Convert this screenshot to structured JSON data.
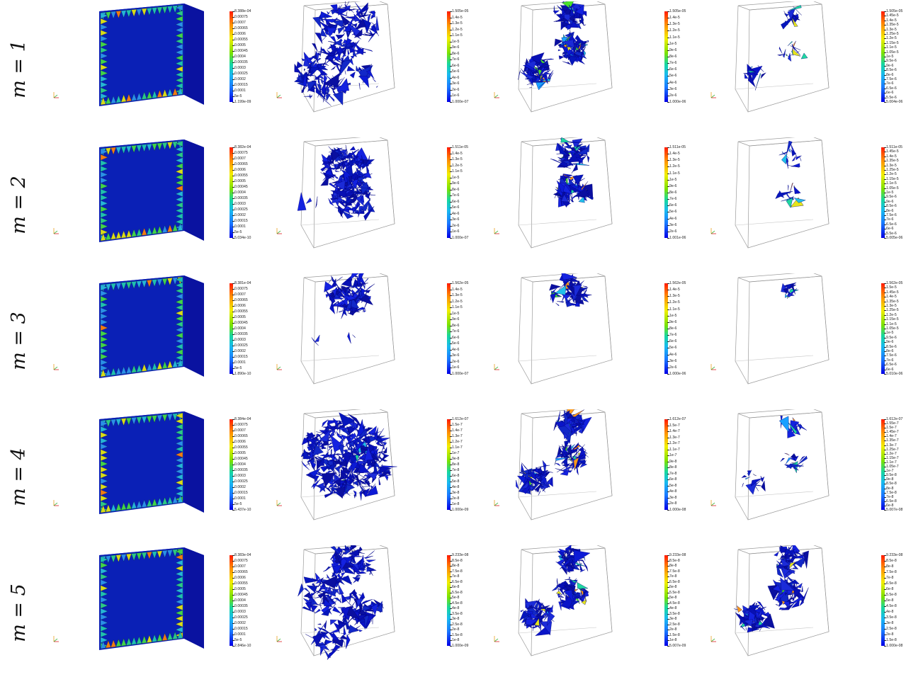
{
  "rows": [
    {
      "label": "m = 1",
      "panels": [
        {
          "kind": "full",
          "ticks": [
            "8.388e-04",
            "0.00075",
            "0.0007",
            "0.00065",
            "0.0006",
            "0.00055",
            "0.0005",
            "0.00045",
            "0.0004",
            "0.00035",
            "0.0003",
            "0.00025",
            "0.0002",
            "0.00015",
            "0.0001",
            "5e-5",
            "1.199e-09"
          ]
        },
        {
          "kind": "scatter",
          "ticks": [
            "1.505e-05",
            "1.4e-5",
            "1.3e-5",
            "1.2e-5",
            "1.1e-5",
            "1e-5",
            "9e-6",
            "8e-6",
            "7e-6",
            "6e-6",
            "5e-6",
            "4e-6",
            "3e-6",
            "2e-6",
            "1e-6",
            "1.000e-07"
          ]
        },
        {
          "kind": "three",
          "ticks": [
            "1.505e-05",
            "1.4e-5",
            "1.3e-5",
            "1.2e-5",
            "1.1e-5",
            "1e-5",
            "9e-6",
            "8e-6",
            "7e-6",
            "6e-6",
            "5e-6",
            "4e-6",
            "3e-6",
            "2e-6",
            "1.000e-06"
          ]
        },
        {
          "kind": "three-sparse",
          "ticks": [
            "1.505e-05",
            "1.45e-5",
            "1.4e-5",
            "1.35e-5",
            "1.3e-5",
            "1.25e-5",
            "1.2e-5",
            "1.15e-5",
            "1.1e-5",
            "1.05e-5",
            "1e-5",
            "9.5e-6",
            "9e-6",
            "8.5e-6",
            "8e-6",
            "7.5e-6",
            "7e-6",
            "6.5e-6",
            "6e-6",
            "5.5e-6",
            "5.004e-06"
          ]
        }
      ]
    },
    {
      "label": "m = 2",
      "panels": [
        {
          "kind": "full",
          "ticks": [
            "8.382e-04",
            "0.00075",
            "0.0007",
            "0.00065",
            "0.0006",
            "0.00055",
            "0.0005",
            "0.00045",
            "0.0004",
            "0.00035",
            "0.0003",
            "0.00025",
            "0.0002",
            "0.00015",
            "0.0001",
            "5e-5",
            "5.034e-10"
          ]
        },
        {
          "kind": "big",
          "ticks": [
            "1.511e-05",
            "1.4e-5",
            "1.3e-5",
            "1.2e-5",
            "1.1e-5",
            "1e-5",
            "9e-6",
            "8e-6",
            "7e-6",
            "6e-6",
            "5e-6",
            "4e-6",
            "3e-6",
            "2e-6",
            "1e-6",
            "1.000e-07"
          ]
        },
        {
          "kind": "two",
          "ticks": [
            "1.511e-05",
            "1.4e-5",
            "1.3e-5",
            "1.2e-5",
            "1.1e-5",
            "1e-5",
            "9e-6",
            "8e-6",
            "7e-6",
            "6e-6",
            "5e-6",
            "4e-6",
            "3e-6",
            "2e-6",
            "1.001e-06"
          ]
        },
        {
          "kind": "two-sparse",
          "ticks": [
            "1.511e-05",
            "1.45e-5",
            "1.4e-5",
            "1.35e-5",
            "1.3e-5",
            "1.25e-5",
            "1.2e-5",
            "1.15e-5",
            "1.1e-5",
            "1.05e-5",
            "1e-5",
            "9.5e-6",
            "9e-6",
            "8.5e-6",
            "8e-6",
            "7.5e-6",
            "7e-6",
            "6.5e-6",
            "6e-6",
            "5.5e-6",
            "5.005e-06"
          ]
        }
      ]
    },
    {
      "label": "m = 3",
      "panels": [
        {
          "kind": "full",
          "ticks": [
            "8.381e-04",
            "0.00075",
            "0.0007",
            "0.00065",
            "0.0006",
            "0.00055",
            "0.0005",
            "0.00045",
            "0.0004",
            "0.00035",
            "0.0003",
            "0.00025",
            "0.0002",
            "0.00015",
            "0.0001",
            "5e-5",
            "1.890e-10"
          ]
        },
        {
          "kind": "top",
          "ticks": [
            "1.562e-05",
            "1.4e-5",
            "1.3e-5",
            "1.2e-5",
            "1.1e-5",
            "1e-5",
            "9e-6",
            "8e-6",
            "7e-6",
            "6e-6",
            "5e-6",
            "4e-6",
            "3e-6",
            "2e-6",
            "1e-6",
            "1.000e-07"
          ]
        },
        {
          "kind": "one",
          "ticks": [
            "1.562e-05",
            "1.4e-5",
            "1.3e-5",
            "1.2e-5",
            "1.1e-5",
            "1e-5",
            "9e-6",
            "8e-6",
            "7e-6",
            "6e-6",
            "5e-6",
            "4e-6",
            "3e-6",
            "2e-6",
            "1.000e-06"
          ]
        },
        {
          "kind": "one-sparse",
          "ticks": [
            "1.562e-05",
            "1.5e-5",
            "1.45e-5",
            "1.4e-5",
            "1.35e-5",
            "1.3e-5",
            "1.25e-5",
            "1.2e-5",
            "1.15e-5",
            "1.1e-5",
            "1.05e-5",
            "1e-5",
            "9.5e-6",
            "9e-6",
            "8.5e-6",
            "8e-6",
            "7.5e-6",
            "7e-6",
            "6.5e-6",
            "6e-6",
            "5.010e-06"
          ]
        }
      ]
    },
    {
      "label": "m = 4",
      "panels": [
        {
          "kind": "full",
          "ticks": [
            "8.384e-04",
            "0.00075",
            "0.0007",
            "0.00065",
            "0.0006",
            "0.00055",
            "0.0005",
            "0.00045",
            "0.0004",
            "0.00035",
            "0.0003",
            "0.00025",
            "0.0002",
            "0.00015",
            "0.0001",
            "5e-5",
            "5.437e-10"
          ]
        },
        {
          "kind": "dense",
          "ticks": [
            "1.612e-07",
            "1.5e-7",
            "1.4e-7",
            "1.3e-7",
            "1.2e-7",
            "1.1e-7",
            "1e-7",
            "9e-8",
            "8e-8",
            "7e-8",
            "6e-8",
            "5e-8",
            "4e-8",
            "3e-8",
            "2e-8",
            "1e-8",
            "1.000e-09"
          ]
        },
        {
          "kind": "three",
          "ticks": [
            "1.612e-07",
            "1.5e-7",
            "1.4e-7",
            "1.3e-7",
            "1.2e-7",
            "1.1e-7",
            "1e-7",
            "9e-8",
            "8e-8",
            "7e-8",
            "6e-8",
            "5e-8",
            "4e-8",
            "3e-8",
            "2e-8",
            "1.000e-08"
          ]
        },
        {
          "kind": "three-sparse",
          "ticks": [
            "1.612e-07",
            "1.55e-7",
            "1.5e-7",
            "1.45e-7",
            "1.4e-7",
            "1.35e-7",
            "1.3e-7",
            "1.25e-7",
            "1.2e-7",
            "1.15e-7",
            "1.1e-7",
            "1.05e-7",
            "1e-7",
            "9.5e-8",
            "9e-8",
            "8.5e-8",
            "8e-8",
            "7.5e-8",
            "7e-8",
            "6.5e-8",
            "6e-8",
            "5.007e-08"
          ]
        }
      ]
    },
    {
      "label": "m = 5",
      "panels": [
        {
          "kind": "full",
          "ticks": [
            "8.383e-04",
            "0.00075",
            "0.0007",
            "0.00065",
            "0.0006",
            "0.00055",
            "0.0005",
            "0.00045",
            "0.0004",
            "0.00035",
            "0.0003",
            "0.00025",
            "0.0002",
            "0.00015",
            "0.0001",
            "5e-5",
            "2.846e-10"
          ]
        },
        {
          "kind": "scatter2",
          "ticks": [
            "9.233e-08",
            "8.5e-8",
            "8e-8",
            "7.5e-8",
            "7e-8",
            "6.5e-8",
            "6e-8",
            "5.5e-8",
            "5e-8",
            "4.5e-8",
            "4e-8",
            "3.5e-8",
            "3e-8",
            "2.5e-8",
            "2e-8",
            "1.5e-8",
            "1e-8",
            "1.000e-09"
          ]
        },
        {
          "kind": "three",
          "ticks": [
            "9.233e-08",
            "8.5e-8",
            "8e-8",
            "7.5e-8",
            "7e-8",
            "6.5e-8",
            "6e-8",
            "5.5e-8",
            "5e-8",
            "4.5e-8",
            "4e-8",
            "3.5e-8",
            "3e-8",
            "2.5e-8",
            "2e-8",
            "1.5e-8",
            "1e-8",
            "5.007e-09"
          ]
        },
        {
          "kind": "three",
          "ticks": [
            "9.233e-08",
            "8.5e-8",
            "8e-8",
            "7.5e-8",
            "7e-8",
            "6.5e-8",
            "6e-8",
            "5.5e-8",
            "5e-8",
            "4.5e-8",
            "4e-8",
            "3.5e-8",
            "3e-8",
            "2.5e-8",
            "2e-8",
            "1.5e-8",
            "1.000e-08"
          ]
        }
      ]
    }
  ]
}
